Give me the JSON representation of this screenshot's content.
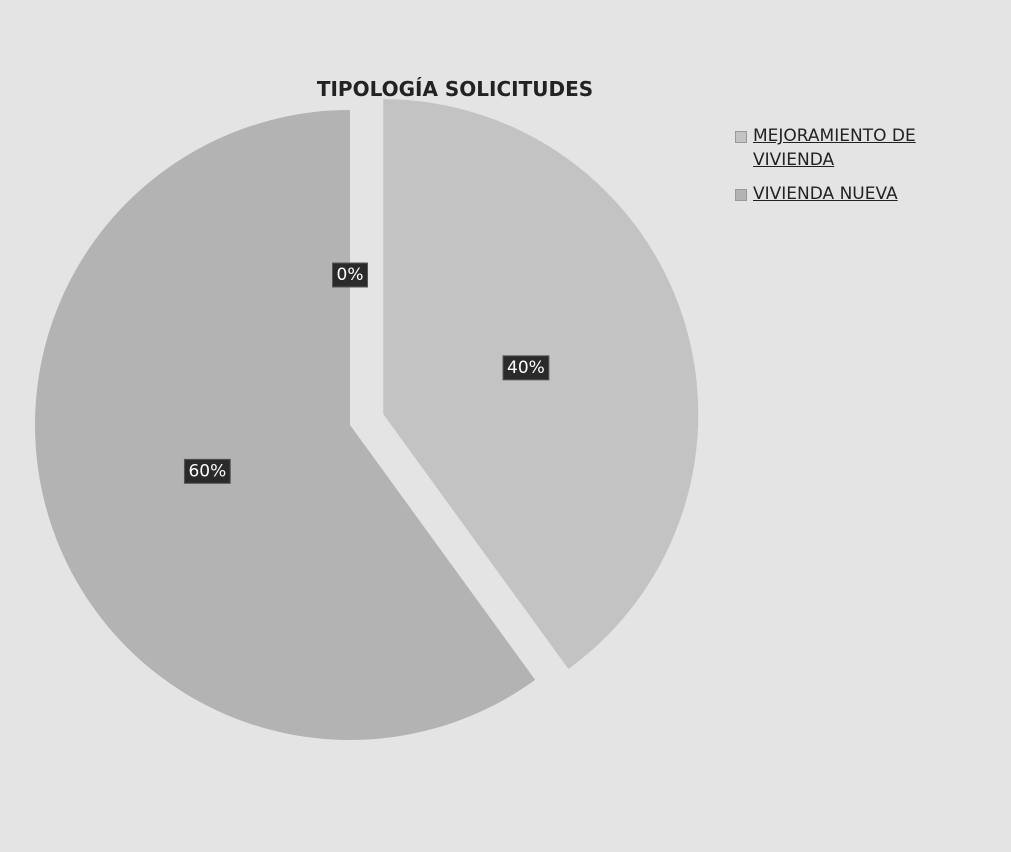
{
  "chart_data": {
    "type": "pie",
    "title": "TIPOLOGÍA SOLICITUDES",
    "categories": [
      "MEJORAMIENTO DE VIVIENDA",
      "VIVIENDA NUEVA",
      null
    ],
    "values": [
      40,
      60,
      0
    ],
    "value_labels": [
      "40%",
      "60%",
      "0%"
    ],
    "colors": [
      "#c3c3c3",
      "#b3b3b3",
      "#a8a8a8"
    ],
    "legend": "right"
  }
}
